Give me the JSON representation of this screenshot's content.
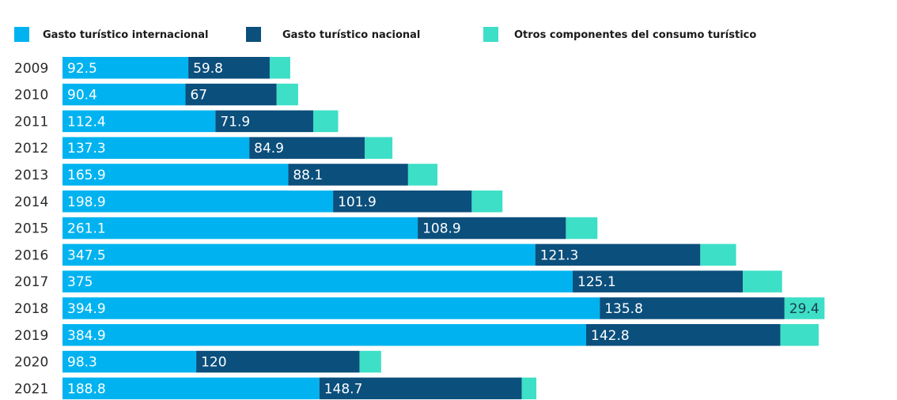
{
  "chart_data": {
    "type": "bar",
    "orientation": "horizontal",
    "stacked": true,
    "title": "",
    "xlabel": "",
    "ylabel": "",
    "grid": false,
    "legend_position": "top",
    "categories": [
      "2009",
      "2010",
      "2011",
      "2012",
      "2013",
      "2014",
      "2015",
      "2016",
      "2017",
      "2018",
      "2019",
      "2020",
      "2021"
    ],
    "series": [
      {
        "name": "Gasto turístico internacional",
        "color": "#00b3f0",
        "values": [
          92.5,
          90.4,
          112.4,
          137.3,
          165.9,
          198.9,
          261.1,
          347.5,
          375,
          394.9,
          384.9,
          98.3,
          188.8
        ],
        "labels": [
          "92.5",
          "90.4",
          "112.4",
          "137.3",
          "165.9",
          "198.9",
          "261.1",
          "347.5",
          "375",
          "394.9",
          "384.9",
          "98.3",
          "188.8"
        ]
      },
      {
        "name": "Gasto turístico nacional",
        "color": "#0b4f7c",
        "values": [
          59.8,
          67,
          71.9,
          84.9,
          88.1,
          101.9,
          108.9,
          121.3,
          125.1,
          135.8,
          142.8,
          120,
          148.7
        ],
        "labels": [
          "59.8",
          "67",
          "71.9",
          "84.9",
          "88.1",
          "101.9",
          "108.9",
          "121.3",
          "125.1",
          "135.8",
          "142.8",
          "120",
          "148.7"
        ]
      },
      {
        "name": "Otros componentes del consumo turístico",
        "color": "#3ddfc6",
        "values": [
          15.1,
          15.8,
          18.3,
          20.3,
          21.6,
          22.6,
          23.2,
          26.3,
          28.8,
          29.4,
          28.1,
          15.9,
          10.8
        ],
        "labels": [
          "",
          "",
          "",
          "",
          "",
          "",
          "",
          "",
          "",
          "29.4",
          "",
          "",
          ""
        ]
      }
    ],
    "xlim": [
      0,
      570
    ]
  }
}
